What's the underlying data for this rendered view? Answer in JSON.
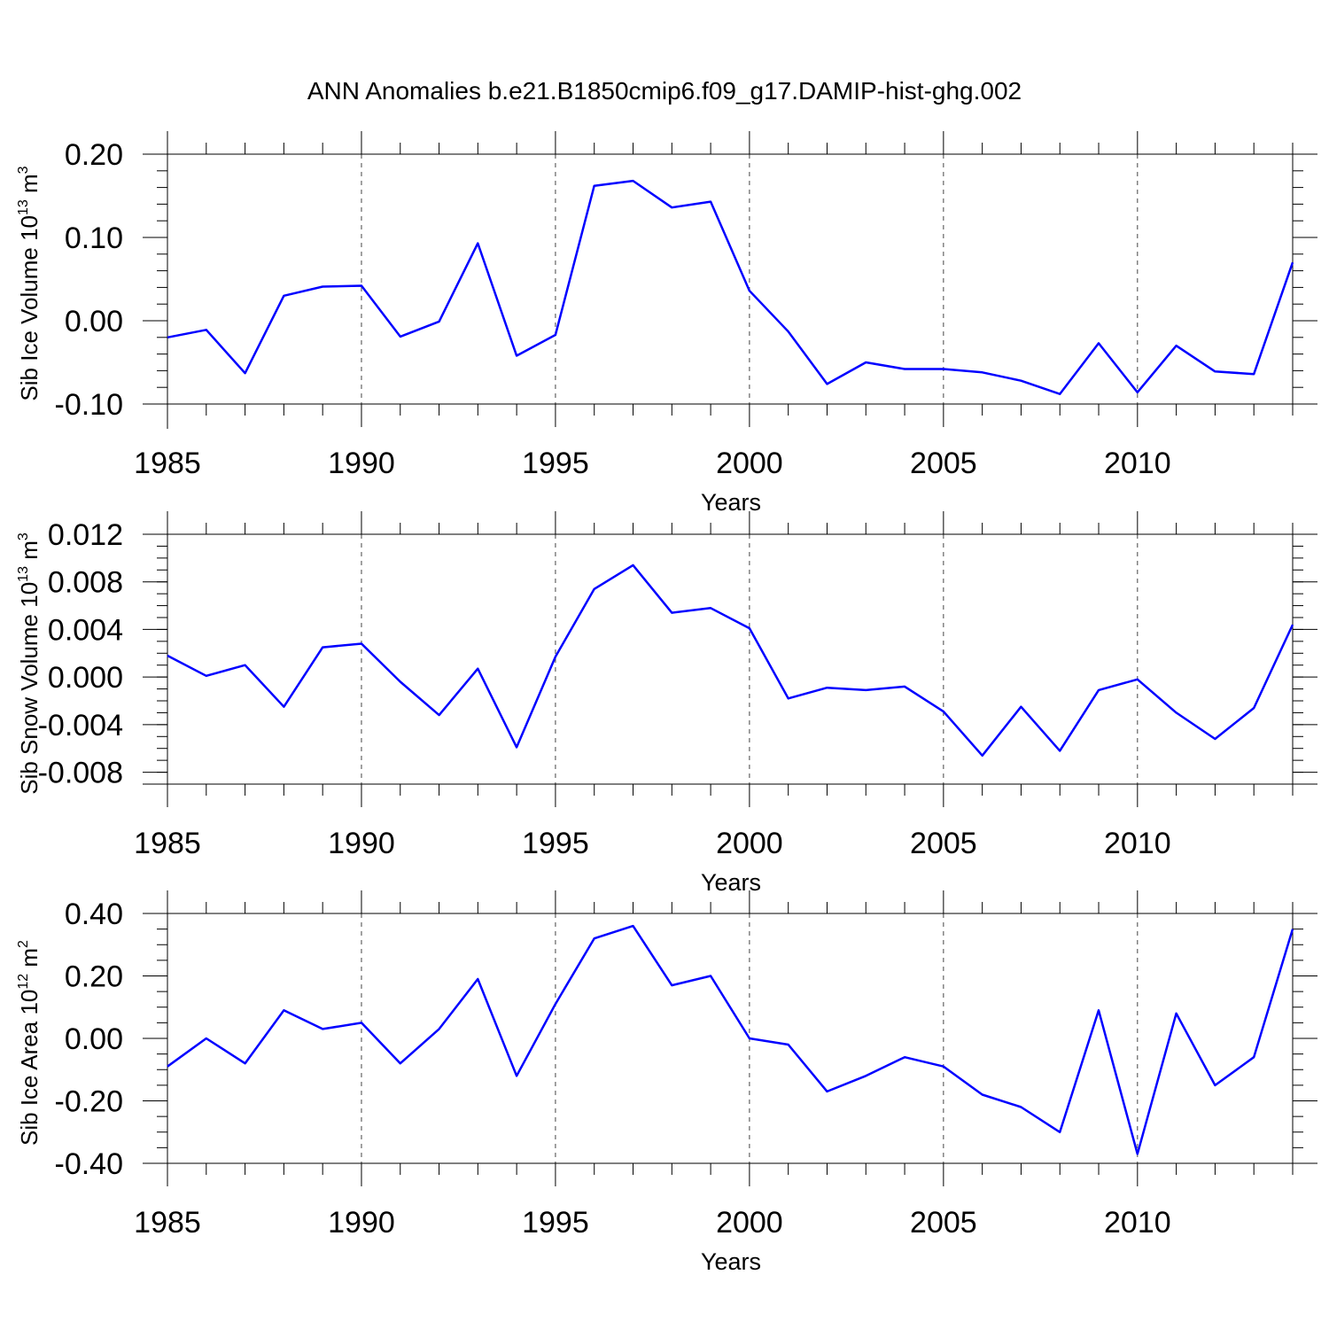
{
  "figure": {
    "title": "ANN Anomalies b.e21.B1850cmip6.f09_g17.DAMIP-hist-ghg.002",
    "line_color": "#0000ff"
  },
  "chart_data": [
    {
      "type": "line",
      "id": "ice-volume",
      "ylabel": "Sib Ice Volume 10",
      "ylabel_exp": "13",
      "ylabel_unit": " m",
      "ylabel_unit_exp": "3",
      "xlabel": "Years",
      "x": [
        1985,
        1986,
        1987,
        1988,
        1989,
        1990,
        1991,
        1992,
        1993,
        1994,
        1995,
        1996,
        1997,
        1998,
        1999,
        2000,
        2001,
        2002,
        2003,
        2004,
        2005,
        2006,
        2007,
        2008,
        2009,
        2010,
        2011,
        2012,
        2013,
        2014
      ],
      "values": [
        -0.02,
        -0.011,
        -0.063,
        0.03,
        0.041,
        0.042,
        -0.019,
        -0.001,
        0.093,
        -0.042,
        -0.017,
        0.162,
        0.168,
        0.136,
        0.143,
        0.036,
        -0.013,
        -0.076,
        -0.05,
        -0.058,
        -0.058,
        -0.062,
        -0.072,
        -0.088,
        -0.027,
        -0.086,
        -0.03,
        -0.061,
        -0.064,
        0.07
      ],
      "xlim": [
        1985,
        2014
      ],
      "ylim": [
        -0.1,
        0.2
      ],
      "yticks": [
        -0.1,
        0.0,
        0.1,
        0.2
      ],
      "ytick_labels": [
        "-0.10",
        "0.00",
        "0.10",
        "0.20"
      ],
      "yminor_step": 0.02,
      "xticks": [
        1985,
        1990,
        1995,
        2000,
        2005,
        2010
      ],
      "xtick_labels": [
        "1985",
        "1990",
        "1995",
        "2000",
        "2005",
        "2010"
      ],
      "grid_x": true
    },
    {
      "type": "line",
      "id": "snow-volume",
      "ylabel": "Sib Snow Volume 10",
      "ylabel_exp": "13",
      "ylabel_unit": " m",
      "ylabel_unit_exp": "3",
      "xlabel": "Years",
      "x": [
        1985,
        1986,
        1987,
        1988,
        1989,
        1990,
        1991,
        1992,
        1993,
        1994,
        1995,
        1996,
        1997,
        1998,
        1999,
        2000,
        2001,
        2002,
        2003,
        2004,
        2005,
        2006,
        2007,
        2008,
        2009,
        2010,
        2011,
        2012,
        2013,
        2014
      ],
      "values": [
        0.0018,
        0.0001,
        0.001,
        -0.0025,
        0.0025,
        0.0028,
        -0.0004,
        -0.0032,
        0.0007,
        -0.0059,
        0.0017,
        0.0074,
        0.0094,
        0.0054,
        0.0058,
        0.0041,
        -0.0018,
        -0.0009,
        -0.0011,
        -0.0008,
        -0.0029,
        -0.0066,
        -0.0025,
        -0.0062,
        -0.0011,
        -0.0002,
        -0.003,
        -0.0052,
        -0.0026,
        0.0044
      ],
      "xlim": [
        1985,
        2014
      ],
      "ylim": [
        -0.009,
        0.012
      ],
      "yticks": [
        -0.008,
        -0.004,
        0.0,
        0.004,
        0.008,
        0.012
      ],
      "ytick_labels": [
        "-0.008",
        "-0.004",
        "0.000",
        "0.004",
        "0.008",
        "0.012"
      ],
      "yminor_step": 0.001,
      "xticks": [
        1985,
        1990,
        1995,
        2000,
        2005,
        2010
      ],
      "xtick_labels": [
        "1985",
        "1990",
        "1995",
        "2000",
        "2005",
        "2010"
      ],
      "grid_x": true
    },
    {
      "type": "line",
      "id": "ice-area",
      "ylabel": "Sib Ice Area 10",
      "ylabel_exp": "12",
      "ylabel_unit": " m",
      "ylabel_unit_exp": "2",
      "xlabel": "Years",
      "x": [
        1985,
        1986,
        1987,
        1988,
        1989,
        1990,
        1991,
        1992,
        1993,
        1994,
        1995,
        1996,
        1997,
        1998,
        1999,
        2000,
        2001,
        2002,
        2003,
        2004,
        2005,
        2006,
        2007,
        2008,
        2009,
        2010,
        2011,
        2012,
        2013,
        2014
      ],
      "values": [
        -0.09,
        0.0,
        -0.08,
        0.09,
        0.03,
        0.05,
        -0.08,
        0.03,
        0.19,
        -0.12,
        0.11,
        0.32,
        0.36,
        0.17,
        0.2,
        0.0,
        -0.02,
        -0.17,
        -0.12,
        -0.06,
        -0.09,
        -0.18,
        -0.22,
        -0.3,
        0.09,
        -0.37,
        0.08,
        -0.15,
        -0.06,
        0.35
      ],
      "xlim": [
        1985,
        2014
      ],
      "ylim": [
        -0.4,
        0.4
      ],
      "yticks": [
        -0.4,
        -0.2,
        0.0,
        0.2,
        0.4
      ],
      "ytick_labels": [
        "-0.40",
        "-0.20",
        "0.00",
        "0.20",
        "0.40"
      ],
      "yminor_step": 0.05,
      "xticks": [
        1985,
        1990,
        1995,
        2000,
        2005,
        2010
      ],
      "xtick_labels": [
        "1985",
        "1990",
        "1995",
        "2000",
        "2005",
        "2010"
      ],
      "grid_x": true
    }
  ]
}
